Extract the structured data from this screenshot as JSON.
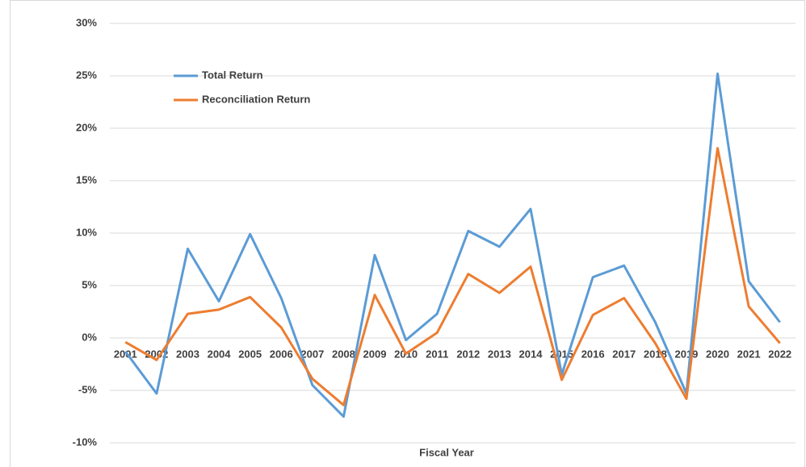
{
  "chart_data": {
    "type": "line",
    "x_label": "Fiscal Year",
    "categories": [
      "2001",
      "2002",
      "2003",
      "2004",
      "2005",
      "2006",
      "2007",
      "2008",
      "2009",
      "2010",
      "2011",
      "2012",
      "2013",
      "2014",
      "2015",
      "2016",
      "2017",
      "2018",
      "2019",
      "2020",
      "2021",
      "2022"
    ],
    "series": [
      {
        "name": "Total Return",
        "color": "#5b9bd5",
        "values": [
          -1.3,
          -5.3,
          8.5,
          3.5,
          9.9,
          3.8,
          -4.5,
          -7.5,
          7.9,
          -0.2,
          2.3,
          10.2,
          8.7,
          12.3,
          -3.5,
          5.8,
          6.9,
          1.5,
          -5.3,
          25.2,
          5.4,
          1.5
        ]
      },
      {
        "name": "Reconciliation Return",
        "color": "#ed7d31",
        "values": [
          -0.4,
          -2.1,
          2.3,
          2.7,
          3.9,
          1.0,
          -3.9,
          -6.4,
          4.1,
          -1.5,
          0.5,
          6.1,
          4.3,
          6.8,
          -4.0,
          2.2,
          3.8,
          -0.5,
          -5.8,
          18.1,
          3.0,
          -0.5
        ]
      }
    ],
    "ylim": [
      -10,
      30
    ],
    "yticks": [
      {
        "value": -10,
        "label": "-10%"
      },
      {
        "value": -5,
        "label": "-5%"
      },
      {
        "value": 0,
        "label": "0%"
      },
      {
        "value": 5,
        "label": "5%"
      },
      {
        "value": 10,
        "label": "10%"
      },
      {
        "value": 15,
        "label": "15%"
      },
      {
        "value": 20,
        "label": "20%"
      },
      {
        "value": 25,
        "label": "25%"
      },
      {
        "value": 30,
        "label": "30%"
      }
    ],
    "grid": true,
    "legend": "upper-left"
  }
}
